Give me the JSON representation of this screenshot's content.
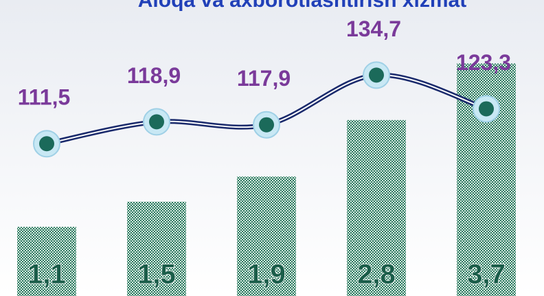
{
  "chart_data": {
    "type": "bar_line",
    "title": "Aloqa va axborotlashtirish xizmat",
    "categories": [
      null,
      null,
      null,
      null,
      null
    ],
    "series": [
      {
        "type": "bar",
        "color": "#1f6b55",
        "values": [
          1.1,
          1.5,
          1.9,
          2.8,
          3.7
        ],
        "value_labels": [
          "1,1",
          "1,5",
          "1,9",
          "2,8",
          "3,7"
        ]
      },
      {
        "type": "line",
        "axis": "y2",
        "color": "#1a2a6c",
        "values": [
          111.5,
          118.9,
          117.9,
          134.7,
          123.3
        ],
        "value_labels": [
          "111,5",
          "118,9",
          "117,9",
          "134,7",
          "123,3"
        ]
      }
    ],
    "ylim": [
      0,
      4
    ],
    "y2lim": [
      60,
      145
    ]
  }
}
